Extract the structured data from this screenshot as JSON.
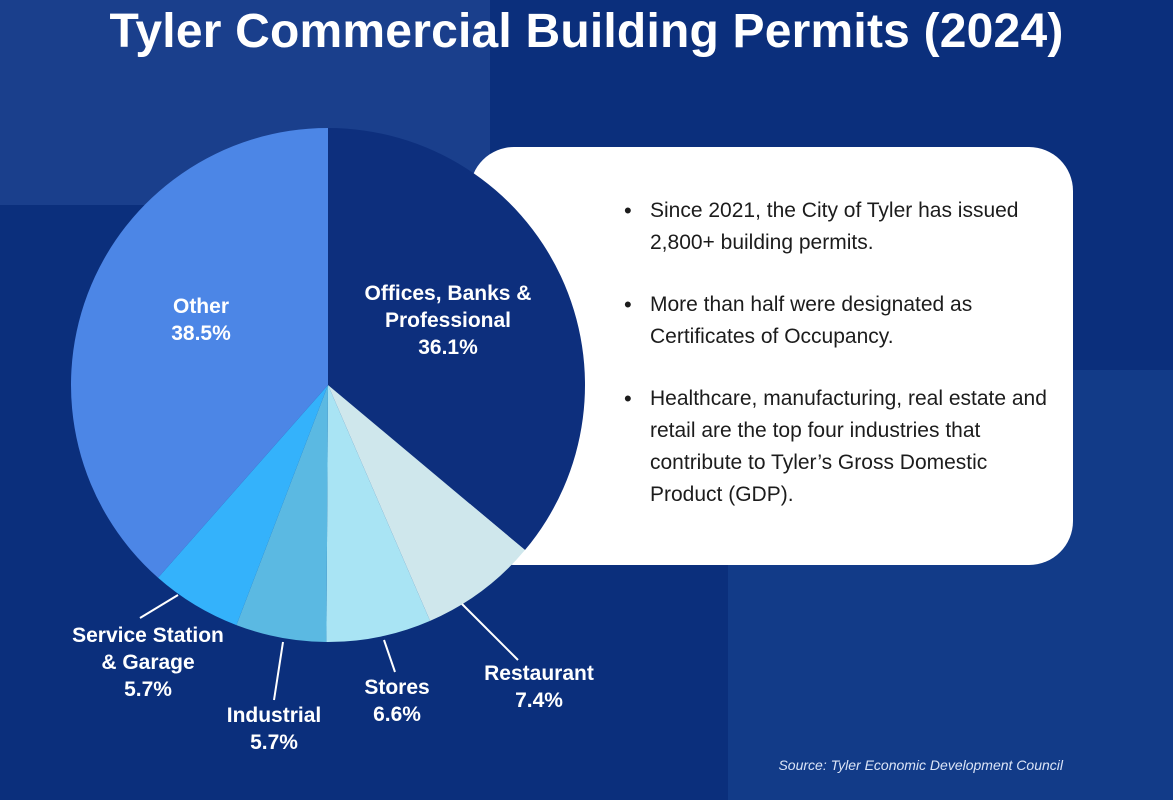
{
  "page": {
    "title": "Tyler Commercial Building Permits (2024)",
    "source": "Source: Tyler Economic Development Council"
  },
  "info": {
    "bullets": [
      "Since 2021, the City of Tyler has issued 2,800+ building permits.",
      "More than half were designated as Certificates of Occupancy.",
      "Healthcare, manufacturing, real estate and retail are the top four industries that contribute to Tyler’s Gross Domestic Product (GDP)."
    ]
  },
  "chart_data": {
    "type": "pie",
    "title": "Tyler Commercial Building Permits (2024)",
    "slices": [
      {
        "label": "Offices, Banks & Professional",
        "value": 36.1,
        "display": "36.1%",
        "color": "#0d2f7d"
      },
      {
        "label": "Restaurant",
        "value": 7.4,
        "display": "7.4%",
        "color": "#cfe7ec"
      },
      {
        "label": "Stores",
        "value": 6.6,
        "display": "6.6%",
        "color": "#a9e4f4"
      },
      {
        "label": "Industrial",
        "value": 5.7,
        "display": "5.7%",
        "color": "#5bb9e2"
      },
      {
        "label": "Service Station & Garage",
        "value": 5.7,
        "display": "5.7%",
        "color": "#34b2fb"
      },
      {
        "label": "Other",
        "value": 38.5,
        "display": "38.5%",
        "color": "#4c86e6"
      }
    ],
    "legend": "none (labels placed at slices)"
  }
}
